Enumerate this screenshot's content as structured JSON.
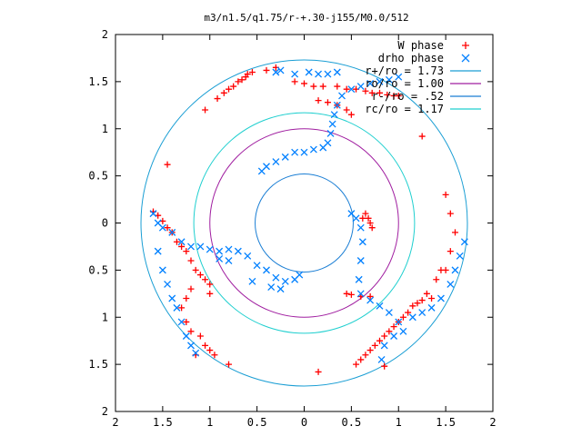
{
  "chart_data": {
    "type": "scatter",
    "title": "m3/n1.5/q1.75/r-+.30-j155/M0.0/512",
    "xlim": [
      -2,
      2
    ],
    "ylim": [
      -2,
      2
    ],
    "x_tick_labels": [
      "2",
      "1.5",
      "1",
      "0.5",
      "0",
      "0.5",
      "1",
      "1.5",
      "2"
    ],
    "y_tick_labels": [
      "2",
      "1.5",
      "1",
      "0.5",
      "0",
      "0.5",
      "1",
      "1.5",
      "2"
    ],
    "legend_position": "top-right",
    "legend": [
      {
        "label": "W phase",
        "color": "#ff0000",
        "marker": "plus"
      },
      {
        "label": "drho phase",
        "color": "#0080ff",
        "marker": "cross"
      },
      {
        "label": "r+/ro = 1.73",
        "color": "#1a9ed4",
        "marker": "line"
      },
      {
        "label": "ro/ro = 1.00",
        "color": "#a01ea0",
        "marker": "line"
      },
      {
        "label": "r-/ro = .52",
        "color": "#1a7ed4",
        "marker": "line"
      },
      {
        "label": "rc/ro = 1.17",
        "color": "#1fcfcf",
        "marker": "line"
      }
    ],
    "circles": [
      {
        "name": "r+/ro",
        "r": 1.73,
        "color": "#1a9ed4"
      },
      {
        "name": "ro/ro",
        "r": 1.0,
        "color": "#a01ea0"
      },
      {
        "name": "r-/ro",
        "r": 0.52,
        "color": "#1a7ed4"
      },
      {
        "name": "rc/ro",
        "r": 1.17,
        "color": "#1fcfcf"
      }
    ],
    "series": [
      {
        "name": "W phase",
        "color": "#ff0000",
        "points": [
          [
            -0.55,
            1.6
          ],
          [
            -0.6,
            1.58
          ],
          [
            -0.62,
            1.55
          ],
          [
            -0.66,
            1.52
          ],
          [
            -0.7,
            1.5
          ],
          [
            -0.75,
            1.45
          ],
          [
            -0.8,
            1.42
          ],
          [
            -0.85,
            1.38
          ],
          [
            -0.92,
            1.32
          ],
          [
            -1.05,
            1.2
          ],
          [
            -0.3,
            1.65
          ],
          [
            -0.4,
            1.62
          ],
          [
            -0.1,
            1.5
          ],
          [
            0.0,
            1.48
          ],
          [
            0.1,
            1.45
          ],
          [
            0.2,
            1.45
          ],
          [
            0.35,
            1.45
          ],
          [
            0.45,
            1.42
          ],
          [
            0.55,
            1.42
          ],
          [
            0.65,
            1.4
          ],
          [
            0.72,
            1.38
          ],
          [
            0.8,
            1.38
          ],
          [
            0.88,
            1.36
          ],
          [
            0.95,
            1.35
          ],
          [
            1.0,
            1.35
          ],
          [
            0.15,
            1.3
          ],
          [
            0.25,
            1.28
          ],
          [
            0.35,
            1.25
          ],
          [
            0.45,
            1.2
          ],
          [
            0.5,
            1.15
          ],
          [
            1.25,
            0.92
          ],
          [
            1.5,
            0.3
          ],
          [
            1.55,
            0.1
          ],
          [
            1.6,
            -0.1
          ],
          [
            1.55,
            -0.3
          ],
          [
            1.5,
            -0.5
          ],
          [
            1.45,
            -0.5
          ],
          [
            1.4,
            -0.6
          ],
          [
            1.35,
            -0.8
          ],
          [
            1.3,
            -0.75
          ],
          [
            1.25,
            -0.82
          ],
          [
            1.2,
            -0.85
          ],
          [
            1.15,
            -0.88
          ],
          [
            1.1,
            -0.95
          ],
          [
            1.05,
            -1.0
          ],
          [
            1.0,
            -1.05
          ],
          [
            0.95,
            -1.1
          ],
          [
            0.9,
            -1.15
          ],
          [
            0.85,
            -1.2
          ],
          [
            0.8,
            -1.25
          ],
          [
            0.75,
            -1.3
          ],
          [
            0.7,
            -1.35
          ],
          [
            0.65,
            -1.4
          ],
          [
            0.6,
            -1.45
          ],
          [
            0.55,
            -1.5
          ],
          [
            0.85,
            -1.52
          ],
          [
            0.15,
            -1.58
          ],
          [
            0.45,
            -0.75
          ],
          [
            0.5,
            -0.76
          ],
          [
            0.6,
            -0.78
          ],
          [
            0.7,
            -0.78
          ],
          [
            0.68,
            0.05
          ],
          [
            0.65,
            0.1
          ],
          [
            0.62,
            0.05
          ],
          [
            0.7,
            0.0
          ],
          [
            0.72,
            -0.05
          ],
          [
            -1.45,
            0.62
          ],
          [
            -1.6,
            0.12
          ],
          [
            -1.55,
            0.08
          ],
          [
            -1.5,
            0.02
          ],
          [
            -1.45,
            -0.05
          ],
          [
            -1.4,
            -0.1
          ],
          [
            -1.35,
            -0.2
          ],
          [
            -1.3,
            -0.25
          ],
          [
            -1.25,
            -0.3
          ],
          [
            -1.2,
            -0.4
          ],
          [
            -1.15,
            -0.5
          ],
          [
            -1.1,
            -0.55
          ],
          [
            -1.05,
            -0.6
          ],
          [
            -1.0,
            -0.65
          ],
          [
            -1.0,
            -0.75
          ],
          [
            -1.2,
            -0.7
          ],
          [
            -1.25,
            -0.8
          ],
          [
            -1.3,
            -0.9
          ],
          [
            -1.25,
            -1.05
          ],
          [
            -1.2,
            -1.15
          ],
          [
            -1.1,
            -1.2
          ],
          [
            -1.05,
            -1.3
          ],
          [
            -1.0,
            -1.35
          ],
          [
            -0.95,
            -1.4
          ],
          [
            -0.8,
            -1.5
          ],
          [
            -1.15,
            -1.4
          ]
        ]
      },
      {
        "name": "drho phase",
        "color": "#0080ff",
        "points": [
          [
            -1.6,
            0.1
          ],
          [
            -1.55,
            0.0
          ],
          [
            -1.5,
            -0.05
          ],
          [
            -1.4,
            -0.1
          ],
          [
            -1.3,
            -0.2
          ],
          [
            -1.2,
            -0.25
          ],
          [
            -1.1,
            -0.25
          ],
          [
            -1.0,
            -0.28
          ],
          [
            -0.9,
            -0.3
          ],
          [
            -0.8,
            -0.28
          ],
          [
            -0.7,
            -0.3
          ],
          [
            -0.6,
            -0.35
          ],
          [
            -0.5,
            -0.45
          ],
          [
            -0.4,
            -0.5
          ],
          [
            -0.3,
            -0.58
          ],
          [
            -0.2,
            -0.62
          ],
          [
            -0.1,
            -0.6
          ],
          [
            -0.05,
            -0.55
          ],
          [
            -0.45,
            0.55
          ],
          [
            -0.4,
            0.6
          ],
          [
            -0.3,
            0.65
          ],
          [
            -0.2,
            0.7
          ],
          [
            -0.1,
            0.75
          ],
          [
            0.0,
            0.75
          ],
          [
            0.1,
            0.78
          ],
          [
            0.2,
            0.8
          ],
          [
            0.25,
            0.85
          ],
          [
            0.28,
            0.95
          ],
          [
            0.3,
            1.05
          ],
          [
            0.32,
            1.15
          ],
          [
            0.35,
            1.25
          ],
          [
            0.4,
            1.35
          ],
          [
            0.5,
            1.42
          ],
          [
            0.6,
            1.45
          ],
          [
            0.7,
            1.48
          ],
          [
            0.8,
            1.5
          ],
          [
            0.9,
            1.52
          ],
          [
            1.0,
            1.55
          ],
          [
            -0.25,
            1.62
          ],
          [
            -0.3,
            1.6
          ],
          [
            -0.1,
            1.58
          ],
          [
            0.05,
            1.6
          ],
          [
            0.15,
            1.58
          ],
          [
            0.25,
            1.58
          ],
          [
            0.35,
            1.6
          ],
          [
            0.5,
            0.1
          ],
          [
            0.55,
            0.05
          ],
          [
            0.6,
            -0.05
          ],
          [
            0.62,
            -0.2
          ],
          [
            0.6,
            -0.4
          ],
          [
            0.58,
            -0.6
          ],
          [
            0.6,
            -0.75
          ],
          [
            0.7,
            -0.82
          ],
          [
            0.8,
            -0.88
          ],
          [
            0.9,
            -0.95
          ],
          [
            1.0,
            -1.05
          ],
          [
            1.05,
            -1.15
          ],
          [
            0.95,
            -1.2
          ],
          [
            0.85,
            -1.3
          ],
          [
            0.82,
            -1.45
          ],
          [
            1.7,
            -0.2
          ],
          [
            1.65,
            -0.35
          ],
          [
            1.6,
            -0.5
          ],
          [
            1.55,
            -0.65
          ],
          [
            1.45,
            -0.8
          ],
          [
            1.35,
            -0.9
          ],
          [
            1.25,
            -0.95
          ],
          [
            1.15,
            -1.0
          ],
          [
            -1.55,
            -0.3
          ],
          [
            -1.5,
            -0.5
          ],
          [
            -1.45,
            -0.65
          ],
          [
            -1.4,
            -0.8
          ],
          [
            -1.35,
            -0.9
          ],
          [
            -1.3,
            -1.05
          ],
          [
            -1.25,
            -1.2
          ],
          [
            -1.2,
            -1.3
          ],
          [
            -1.15,
            -1.38
          ],
          [
            -0.9,
            -0.38
          ],
          [
            -0.8,
            -0.4
          ],
          [
            -0.55,
            -0.62
          ],
          [
            -0.35,
            -0.68
          ],
          [
            -0.25,
            -0.7
          ]
        ]
      }
    ]
  }
}
